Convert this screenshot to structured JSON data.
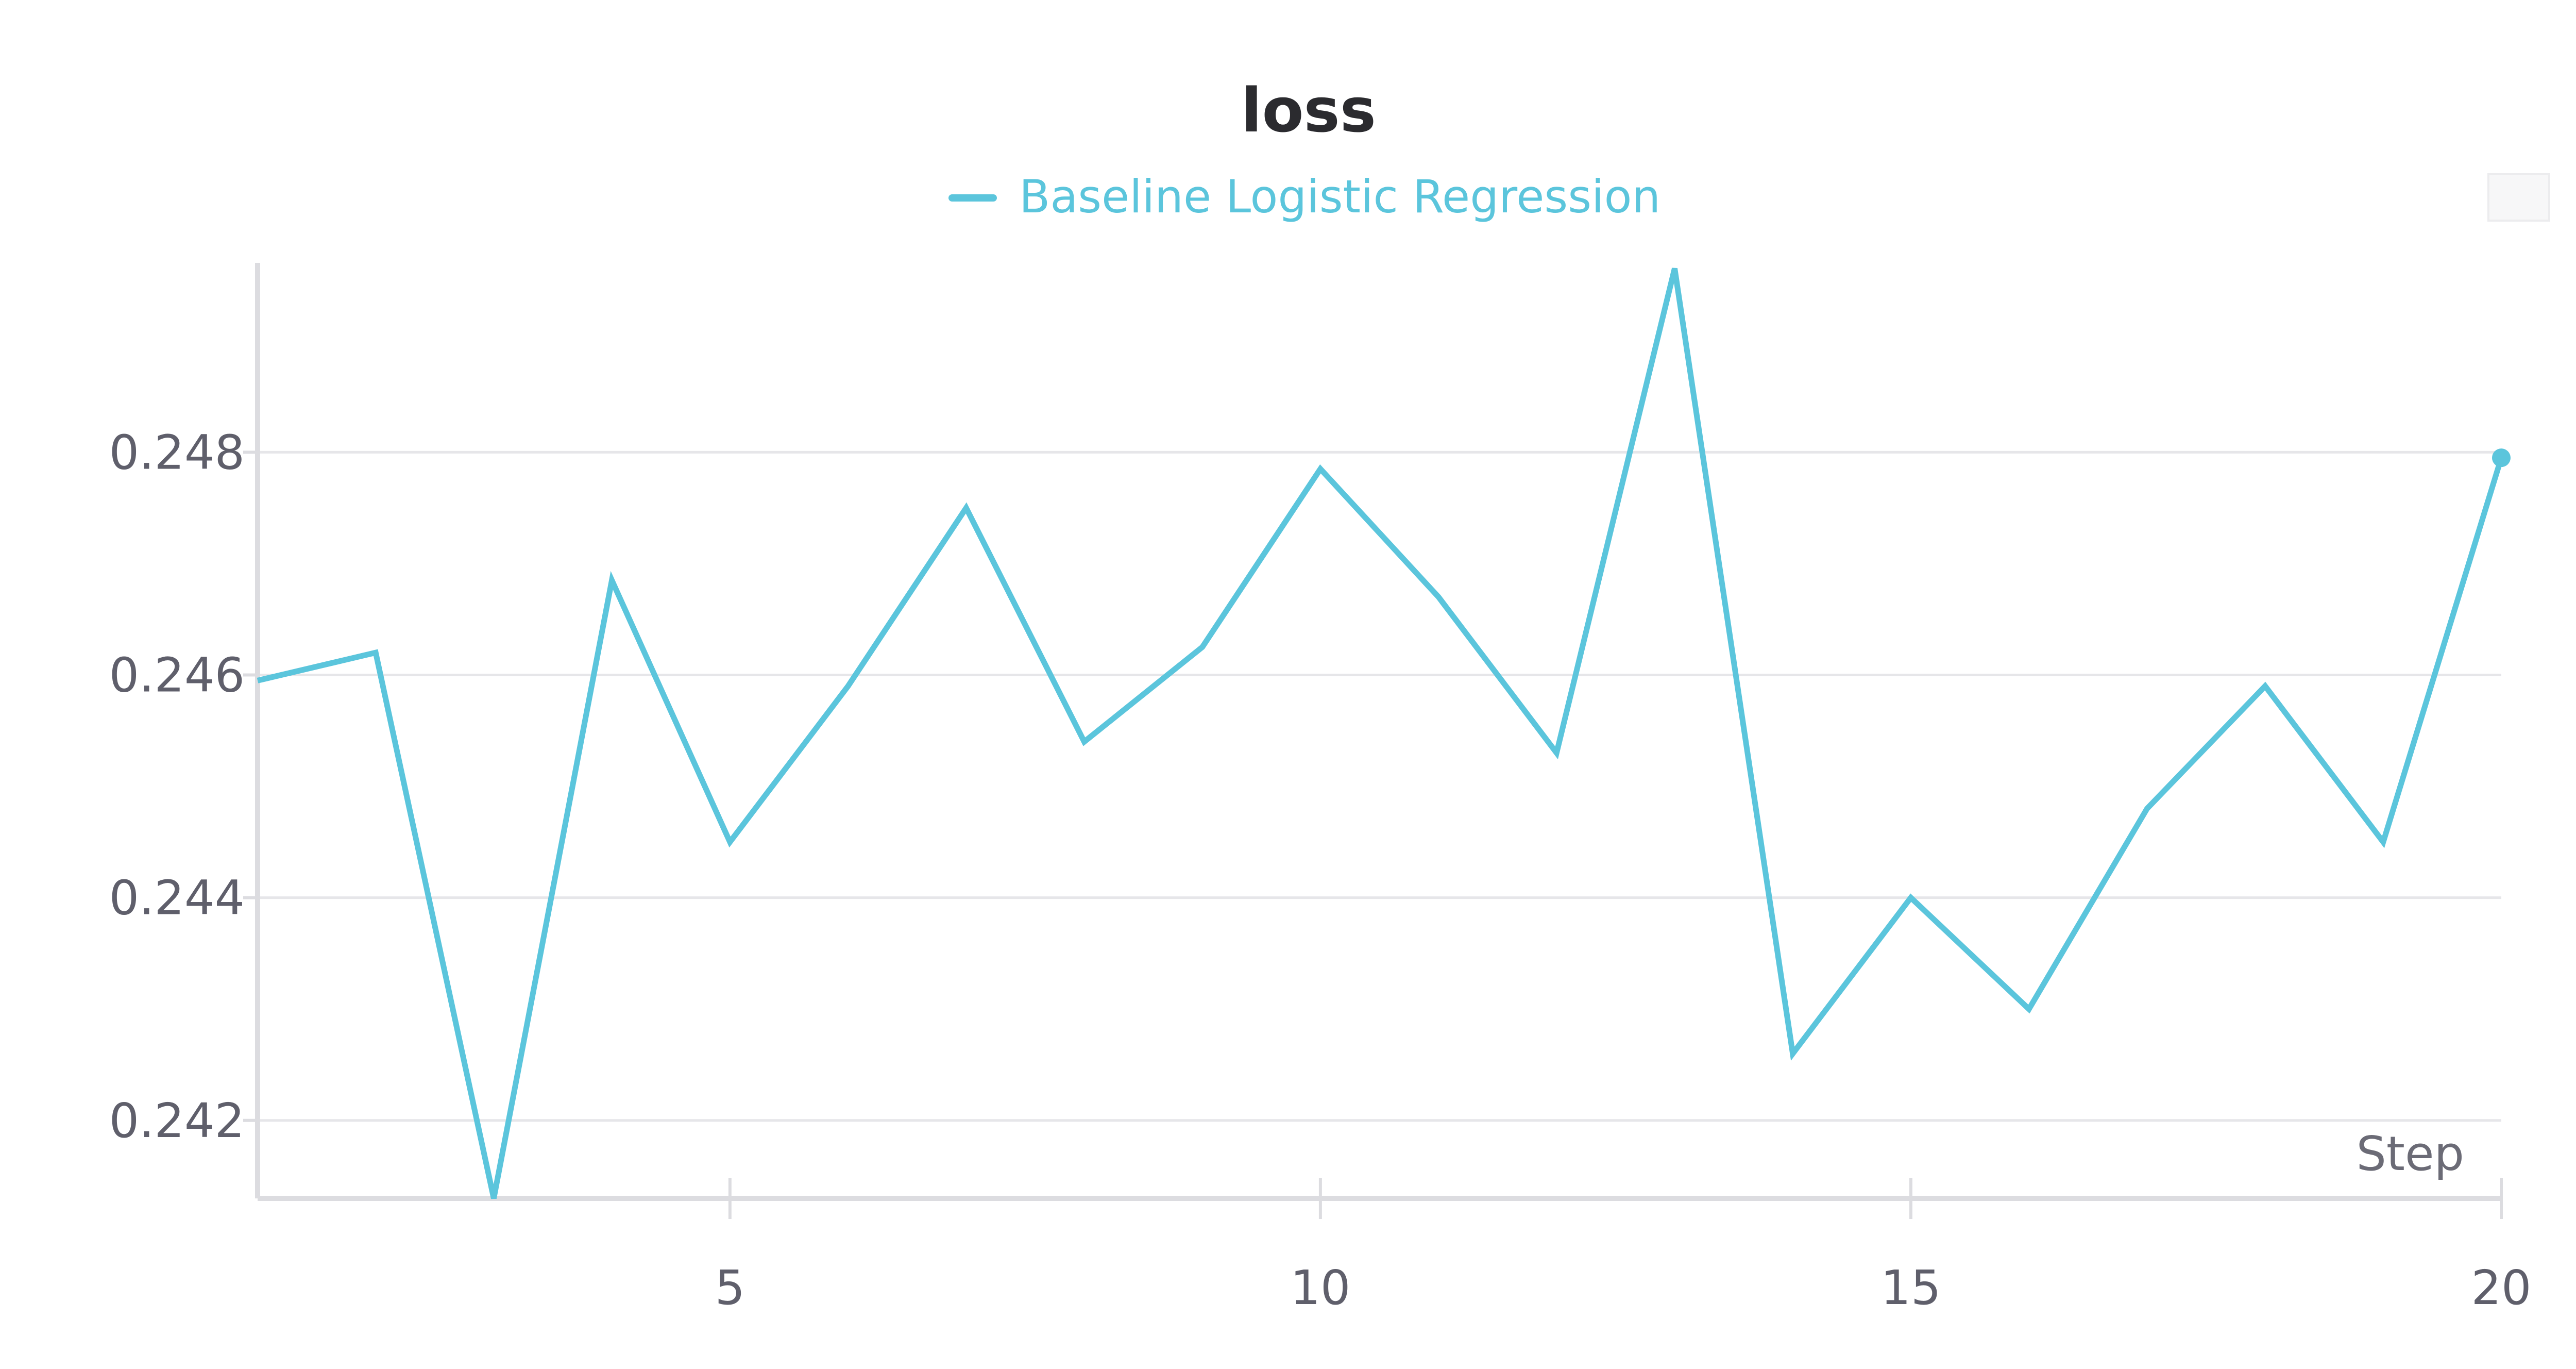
{
  "colors": {
    "series": "#5bc5dc",
    "grid": "#e6e6e9",
    "axis": "#dcdce0",
    "text": "#5f5f6b",
    "title": "#2b2b2f"
  },
  "chart_data": {
    "type": "line",
    "title": "loss",
    "xlabel": "Step",
    "ylabel": "",
    "xlim": [
      1,
      20
    ],
    "ylim": [
      0.2413,
      0.2497
    ],
    "xticks": [
      "5",
      "10",
      "15",
      "20"
    ],
    "yticks": [
      "0.242",
      "0.244",
      "0.246",
      "0.248"
    ],
    "grid": true,
    "legend": "top-center",
    "series": [
      {
        "name": "Baseline Logistic Regression",
        "x": [
          1,
          2,
          3,
          4,
          5,
          6,
          7,
          8,
          9,
          10,
          11,
          12,
          13,
          14,
          15,
          16,
          17,
          18,
          19,
          20
        ],
        "values": [
          0.24595,
          0.2462,
          0.2413,
          0.24685,
          0.2445,
          0.2459,
          0.2475,
          0.2454,
          0.24625,
          0.24785,
          0.2467,
          0.2453,
          0.24965,
          0.2426,
          0.244,
          0.243,
          0.2448,
          0.2459,
          0.2445,
          0.24795
        ]
      }
    ]
  }
}
